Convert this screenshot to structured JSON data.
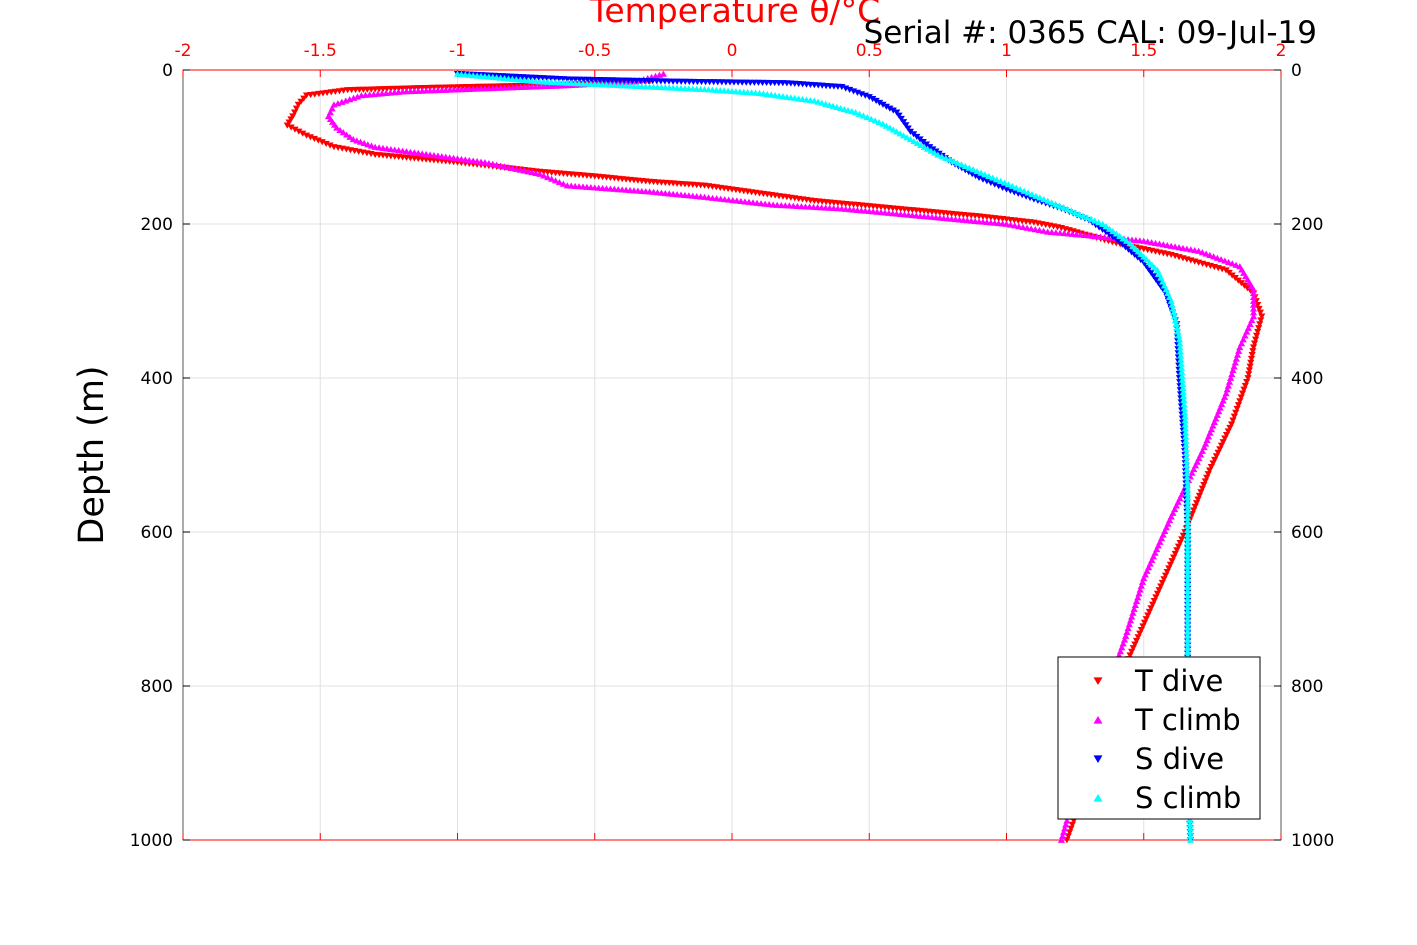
{
  "chart_data": {
    "type": "scatter",
    "title": "Temperature θ/°C",
    "annotation": "Serial #: 0365  CAL: 09-Jul-19",
    "xlabel": "Temperature θ/°C",
    "ylabel": "Depth (m)",
    "xlim": [
      -2,
      2
    ],
    "ylim": [
      0,
      1000
    ],
    "y_reversed": true,
    "x_ticks": [
      -2,
      -1.5,
      -1,
      -0.5,
      0,
      0.5,
      1,
      1.5,
      2
    ],
    "x_tick_labels": [
      "-2",
      "-1.5",
      "-1",
      "-0.5",
      "0",
      "0.5",
      "1",
      "1.5",
      "2"
    ],
    "y_ticks": [
      0,
      200,
      400,
      600,
      800,
      1000
    ],
    "y_tick_labels": [
      "0",
      "200",
      "400",
      "600",
      "800",
      "1000"
    ],
    "grid": true,
    "legend_position": "bottom-right",
    "colors": {
      "axis_x": "#ff0000",
      "axis_y": "#000000",
      "grid": "#e0e0e0"
    },
    "series": [
      {
        "name": "T dive",
        "color": "#ff0000",
        "marker": "triangle-down",
        "points": [
          [
            -0.3,
            15
          ],
          [
            -0.7,
            20
          ],
          [
            -1.1,
            23
          ],
          [
            -1.4,
            26
          ],
          [
            -1.55,
            33
          ],
          [
            -1.58,
            45
          ],
          [
            -1.6,
            60
          ],
          [
            -1.62,
            72
          ],
          [
            -1.55,
            85
          ],
          [
            -1.45,
            100
          ],
          [
            -1.3,
            110
          ],
          [
            -1.0,
            120
          ],
          [
            -0.7,
            132
          ],
          [
            -0.5,
            138
          ],
          [
            -0.3,
            145
          ],
          [
            -0.1,
            150
          ],
          [
            0.1,
            160
          ],
          [
            0.3,
            170
          ],
          [
            0.6,
            180
          ],
          [
            0.9,
            190
          ],
          [
            1.1,
            198
          ],
          [
            1.2,
            205
          ],
          [
            1.3,
            215
          ],
          [
            1.4,
            225
          ],
          [
            1.6,
            240
          ],
          [
            1.8,
            260
          ],
          [
            1.9,
            290
          ],
          [
            1.93,
            320
          ],
          [
            1.9,
            360
          ],
          [
            1.88,
            400
          ],
          [
            1.82,
            460
          ],
          [
            1.74,
            520
          ],
          [
            1.65,
            600
          ],
          [
            1.55,
            680
          ],
          [
            1.45,
            760
          ],
          [
            1.38,
            840
          ],
          [
            1.3,
            920
          ],
          [
            1.22,
            1000
          ]
        ]
      },
      {
        "name": "T climb",
        "color": "#ff00ff",
        "marker": "triangle-up",
        "points": [
          [
            -0.25,
            5
          ],
          [
            -0.35,
            15
          ],
          [
            -0.6,
            20
          ],
          [
            -0.9,
            24
          ],
          [
            -1.2,
            28
          ],
          [
            -1.35,
            33
          ],
          [
            -1.45,
            45
          ],
          [
            -1.47,
            60
          ],
          [
            -1.44,
            75
          ],
          [
            -1.38,
            90
          ],
          [
            -1.3,
            100
          ],
          [
            -1.1,
            110
          ],
          [
            -0.9,
            120
          ],
          [
            -0.7,
            135
          ],
          [
            -0.6,
            150
          ],
          [
            -0.3,
            158
          ],
          [
            -0.1,
            165
          ],
          [
            0.15,
            175
          ],
          [
            0.4,
            180
          ],
          [
            0.7,
            190
          ],
          [
            1.0,
            200
          ],
          [
            1.15,
            210
          ],
          [
            1.3,
            215
          ],
          [
            1.5,
            222
          ],
          [
            1.7,
            235
          ],
          [
            1.85,
            255
          ],
          [
            1.9,
            285
          ],
          [
            1.9,
            320
          ],
          [
            1.85,
            360
          ],
          [
            1.8,
            420
          ],
          [
            1.72,
            490
          ],
          [
            1.6,
            580
          ],
          [
            1.5,
            660
          ],
          [
            1.43,
            740
          ],
          [
            1.35,
            820
          ],
          [
            1.28,
            900
          ],
          [
            1.2,
            1000
          ]
        ]
      },
      {
        "name": "S dive",
        "color": "#0000ff",
        "marker": "triangle-down",
        "points": [
          [
            -1.0,
            5
          ],
          [
            -0.6,
            12
          ],
          [
            -0.2,
            15
          ],
          [
            0.2,
            17
          ],
          [
            0.4,
            22
          ],
          [
            0.5,
            35
          ],
          [
            0.6,
            55
          ],
          [
            0.65,
            80
          ],
          [
            0.72,
            100
          ],
          [
            0.8,
            120
          ],
          [
            0.9,
            140
          ],
          [
            1.0,
            155
          ],
          [
            1.1,
            168
          ],
          [
            1.2,
            180
          ],
          [
            1.3,
            195
          ],
          [
            1.4,
            220
          ],
          [
            1.5,
            250
          ],
          [
            1.58,
            290
          ],
          [
            1.62,
            330
          ],
          [
            1.63,
            400
          ],
          [
            1.65,
            500
          ],
          [
            1.66,
            600
          ],
          [
            1.66,
            700
          ],
          [
            1.66,
            800
          ],
          [
            1.66,
            900
          ],
          [
            1.67,
            1000
          ]
        ]
      },
      {
        "name": "S climb",
        "color": "#00ffff",
        "marker": "triangle-up",
        "points": [
          [
            -1.0,
            5
          ],
          [
            -0.7,
            15
          ],
          [
            -0.4,
            20
          ],
          [
            -0.1,
            25
          ],
          [
            0.1,
            30
          ],
          [
            0.3,
            40
          ],
          [
            0.45,
            55
          ],
          [
            0.55,
            70
          ],
          [
            0.65,
            90
          ],
          [
            0.75,
            110
          ],
          [
            0.85,
            125
          ],
          [
            0.95,
            140
          ],
          [
            1.05,
            155
          ],
          [
            1.15,
            170
          ],
          [
            1.25,
            185
          ],
          [
            1.35,
            200
          ],
          [
            1.45,
            225
          ],
          [
            1.55,
            260
          ],
          [
            1.6,
            300
          ],
          [
            1.63,
            350
          ],
          [
            1.65,
            450
          ],
          [
            1.66,
            550
          ],
          [
            1.66,
            650
          ],
          [
            1.66,
            750
          ],
          [
            1.66,
            850
          ],
          [
            1.67,
            1000
          ]
        ]
      }
    ]
  }
}
